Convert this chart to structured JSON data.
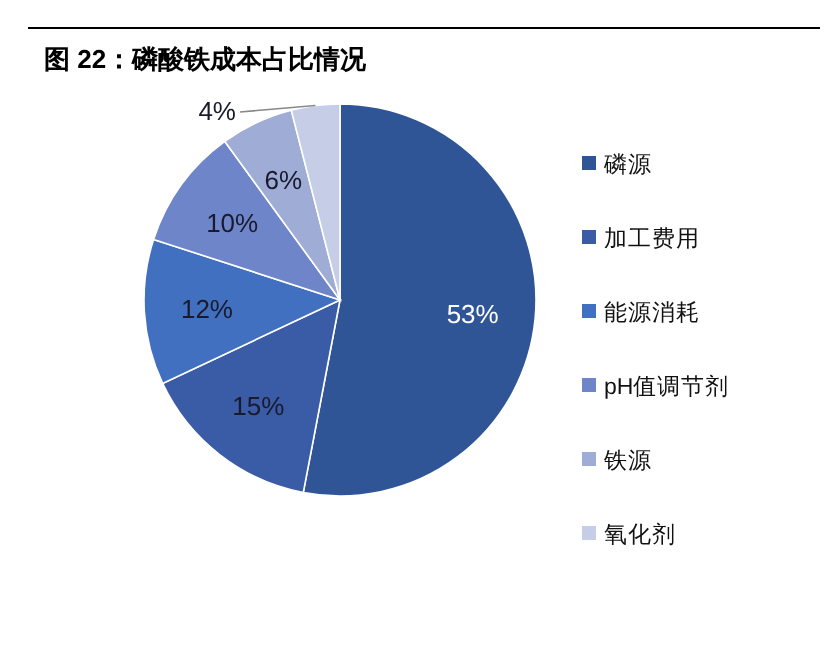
{
  "chart_data": {
    "type": "pie",
    "title": "图 22：磷酸铁成本占比情况",
    "categories": [
      "磷源",
      "加工费用",
      "能源消耗",
      "pH值调节剂",
      "铁源",
      "氧化剂"
    ],
    "values": [
      53,
      15,
      12,
      10,
      6,
      4
    ],
    "colors": [
      "#2f5597",
      "#3a5ba6",
      "#4170c0",
      "#6e86c9",
      "#9eacd6",
      "#c6cde6"
    ],
    "value_labels": [
      "53%",
      "15%",
      "12%",
      "10%",
      "6%",
      "4%"
    ],
    "legend": "right"
  }
}
